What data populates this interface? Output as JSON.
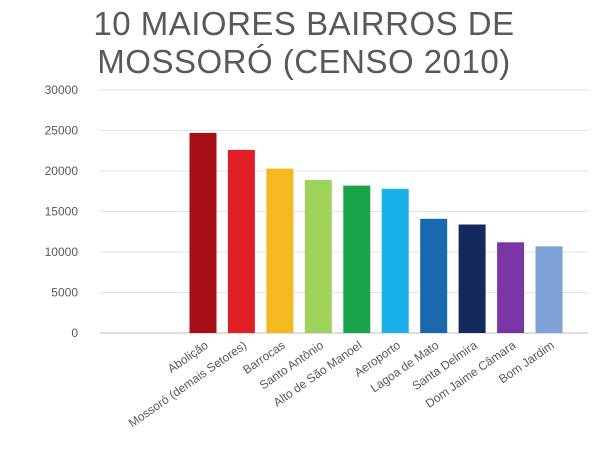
{
  "chart_data": {
    "type": "bar",
    "title_lines": [
      "10 MAIORES BAIRROS DE",
      "MOSSORÓ (CENSO 2010)"
    ],
    "categories": [
      "Abolição",
      "Mossoró (demais Setores)",
      "Barrocas",
      "Santo Antônio",
      "Alto de São Manoel",
      "Aeroporto",
      "Lagoa de Mato",
      "Santa Delmira",
      "Dom Jaime Câmara",
      "Bom Jardim"
    ],
    "values": [
      24700,
      22600,
      20300,
      18900,
      18200,
      17800,
      14100,
      13400,
      11200,
      10700
    ],
    "colors": [
      "#a50e14",
      "#e01f25",
      "#f4b820",
      "#9fd25b",
      "#1aa34a",
      "#1ab0ea",
      "#1869ad",
      "#152a5c",
      "#7a36a4",
      "#7fa2d8"
    ],
    "ylim": [
      0,
      30000
    ],
    "yticks": [
      "0",
      "5000",
      "10000",
      "15000",
      "20000",
      "25000",
      "30000"
    ],
    "grid": true,
    "xlabel": "",
    "ylabel": ""
  }
}
